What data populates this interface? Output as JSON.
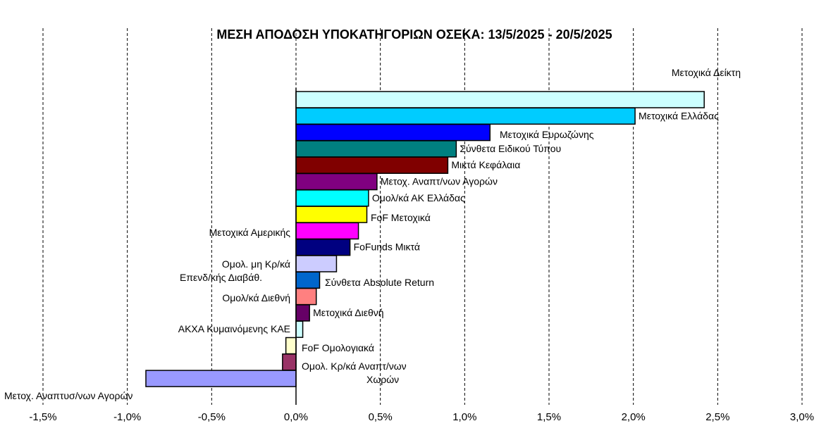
{
  "chart_data": {
    "type": "bar",
    "orientation": "horizontal",
    "title": "ΜΕΣΗ ΑΠΟΔΟΣΗ ΥΠΟΚΑΤΗΓΟΡΙΩΝ ΟΣΕΚΑ: 13/5/2025 - 20/5/2025",
    "xlabel": "",
    "ylabel": "",
    "xlim": [
      -1.5,
      3.0
    ],
    "xticks": [
      "-1,5%",
      "-1,0%",
      "-0,5%",
      "0,0%",
      "0,5%",
      "1,0%",
      "1,5%",
      "2,0%",
      "2,5%",
      "3,0%"
    ],
    "grid": "vertical dashed",
    "legend": "none",
    "categories": [
      "Μετοχικά Δείκτη",
      "Μετοχικά Ελλάδας",
      "Μετοχικά Ευρωζώνης",
      "Σύνθετα Ειδικού Τύπου",
      "Μικτά Κεφάλαια",
      "Μετοχ. Αναπτ/νων Αγορών",
      "Ομολ/κά ΑΚ Ελλάδας",
      "FoF Μετοχικά",
      "Μετοχικά Αμερικής",
      "FoFunds Μικτά",
      "Ομολ. μη Κρ/κά Επενδ/κής Διαβάθ.",
      "Σύνθετα Absolute Return",
      "Ομολ/κά Διεθνή",
      "Μετοχικά Διεθνή",
      "ΑΚΧΑ Κυμαινόμενης ΚΑΕ",
      "FoF Ομολογιακά",
      "Ομολ. Κρ/κά Αναπτ/νων Χωρών",
      "Μετοχ. Αναπτυσ/νων Αγορών"
    ],
    "values": [
      2.42,
      2.01,
      1.15,
      0.95,
      0.9,
      0.48,
      0.43,
      0.42,
      0.37,
      0.32,
      0.24,
      0.14,
      0.12,
      0.08,
      0.04,
      -0.06,
      -0.08,
      -0.89
    ],
    "colors": [
      "#CCFFFF",
      "#00CCFF",
      "#0000FF",
      "#008080",
      "#800000",
      "#800080",
      "#00FFFF",
      "#FFFF00",
      "#FF00FF",
      "#000080",
      "#CCCCFF",
      "#0066CC",
      "#FF8080",
      "#660066",
      "#CCFFFF",
      "#FFFFCC",
      "#993366",
      "#9999FF"
    ]
  }
}
